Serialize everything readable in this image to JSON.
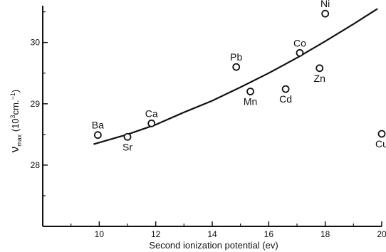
{
  "chart_data": {
    "type": "scatter",
    "xlabel": "Second ionization potential (ev)",
    "ylabel": {
      "symbol": "ν",
      "subscript": "max",
      "unit_open": " (10",
      "exponent": "3",
      "unit_mid": "cm.",
      "unit_exp": "−1",
      "unit_close": ")"
    },
    "xlim": [
      8.0,
      20.0
    ],
    "ylim": [
      27.0,
      30.6
    ],
    "x_ticks": [
      {
        "value": 10,
        "label": "10"
      },
      {
        "value": 12,
        "label": "12"
      },
      {
        "value": 14,
        "label": "14"
      },
      {
        "value": 16,
        "label": "16"
      },
      {
        "value": 18,
        "label": "18"
      },
      {
        "value": 20,
        "label": "20"
      }
    ],
    "y_ticks": [
      {
        "value": 28,
        "label": "28"
      },
      {
        "value": 29,
        "label": "29"
      },
      {
        "value": 30,
        "label": "30"
      }
    ],
    "points": [
      {
        "label": "Ba",
        "x": 9.95,
        "y": 28.49,
        "label_pos": "above"
      },
      {
        "label": "Sr",
        "x": 11.0,
        "y": 28.46,
        "label_pos": "below"
      },
      {
        "label": "Ca",
        "x": 11.85,
        "y": 28.68,
        "label_pos": "above"
      },
      {
        "label": "Pb",
        "x": 14.85,
        "y": 29.6,
        "label_pos": "above"
      },
      {
        "label": "Mn",
        "x": 15.35,
        "y": 29.2,
        "label_pos": "below"
      },
      {
        "label": "Cd",
        "x": 16.6,
        "y": 29.24,
        "label_pos": "below"
      },
      {
        "label": "Co",
        "x": 17.1,
        "y": 29.83,
        "label_pos": "above"
      },
      {
        "label": "Zn",
        "x": 17.8,
        "y": 29.58,
        "label_pos": "below"
      },
      {
        "label": "Ni",
        "x": 18.0,
        "y": 30.47,
        "label_pos": "above"
      },
      {
        "label": "Cu",
        "x": 20.0,
        "y": 28.51,
        "label_pos": "below"
      }
    ],
    "fit_curve": {
      "x": [
        9.8,
        11.0,
        12.0,
        13.0,
        14.0,
        15.0,
        16.0,
        17.0,
        18.0,
        19.0,
        19.85
      ],
      "y": [
        28.34,
        28.5,
        28.66,
        28.86,
        29.05,
        29.27,
        29.5,
        29.75,
        30.02,
        30.3,
        30.55
      ]
    },
    "grid": false,
    "legend": "none",
    "colors": {
      "ink": "#111111",
      "background": "#ffffff"
    }
  }
}
